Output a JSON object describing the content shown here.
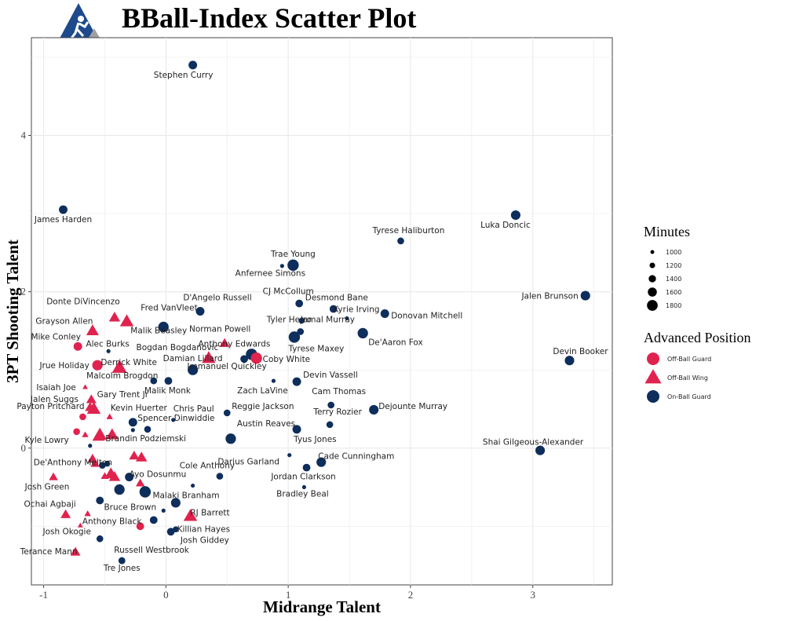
{
  "title": "BBall-Index Scatter Plot",
  "colors": {
    "off_ball_guard": "#e0234e",
    "off_ball_wing": "#e0234e",
    "on_ball_guard": "#0e2e5c",
    "grid": "#ebebeb",
    "logo_bg": "#1e4a8c",
    "logo_tri": "#a0a0a0"
  },
  "chart_data": {
    "type": "scatter",
    "xlabel": "Midrange Talent",
    "ylabel": "3PT Shooting Talent",
    "xlim": [
      -1.1,
      3.65
    ],
    "ylim": [
      -1.75,
      5.25
    ],
    "xticks": [
      -1,
      0,
      1,
      2,
      3
    ],
    "yticks": [
      0,
      2,
      4
    ],
    "grid": true,
    "legend": {
      "minutes_title": "Minutes",
      "minutes_levels": [
        1000,
        1200,
        1400,
        1600,
        1800
      ],
      "position_title": "Advanced Position",
      "positions": [
        "Off-Ball Guard",
        "Off-Ball Wing",
        "On-Ball Guard"
      ],
      "placement": "right"
    },
    "points": [
      {
        "name": "Stephen Curry",
        "x": 0.22,
        "y": 4.9,
        "pos": "On-Ball Guard",
        "minutes": 1500
      },
      {
        "name": "James Harden",
        "x": -0.84,
        "y": 3.05,
        "pos": "On-Ball Guard",
        "minutes": 1500
      },
      {
        "name": "Luka Doncic",
        "x": 2.86,
        "y": 2.98,
        "pos": "On-Ball Guard",
        "minutes": 1600
      },
      {
        "name": "Tyrese Haliburton",
        "x": 1.92,
        "y": 2.65,
        "pos": "On-Ball Guard",
        "minutes": 1300
      },
      {
        "name": "Trae Young",
        "x": 1.04,
        "y": 2.34,
        "pos": "On-Ball Guard",
        "minutes": 1800
      },
      {
        "name": "Anfernee Simons",
        "x": 0.95,
        "y": 2.33,
        "pos": "On-Ball Guard",
        "minutes": 1000
      },
      {
        "name": "Jalen Brunson",
        "x": 3.43,
        "y": 1.95,
        "pos": "On-Ball Guard",
        "minutes": 1600
      },
      {
        "name": "D'Angelo Russell",
        "x": 0.28,
        "y": 1.75,
        "pos": "On-Ball Guard",
        "minutes": 1500
      },
      {
        "name": "CJ McCollum",
        "x": 1.09,
        "y": 1.85,
        "pos": "On-Ball Guard",
        "minutes": 1400
      },
      {
        "name": "Desmond Bane",
        "x": 1.37,
        "y": 1.78,
        "pos": "On-Ball Guard",
        "minutes": 1400
      },
      {
        "name": "Donovan Mitchell",
        "x": 1.79,
        "y": 1.72,
        "pos": "On-Ball Guard",
        "minutes": 1500
      },
      {
        "name": "Tyler Herro",
        "x": 1.11,
        "y": 1.63,
        "pos": "On-Ball Guard",
        "minutes": 1200
      },
      {
        "name": "Kyrie Irving",
        "x": 1.48,
        "y": 1.66,
        "pos": "On-Ball Guard",
        "minutes": 1000
      },
      {
        "name": "De'Aaron Fox",
        "x": 1.61,
        "y": 1.47,
        "pos": "On-Ball Guard",
        "minutes": 1700
      },
      {
        "name": "Jamal Murray",
        "x": 1.1,
        "y": 1.49,
        "pos": "On-Ball Guard",
        "minutes": 1300
      },
      {
        "name": "Tyrese Maxey",
        "x": 1.05,
        "y": 1.42,
        "pos": "On-Ball Guard",
        "minutes": 1800
      },
      {
        "name": "Devin Booker",
        "x": 3.3,
        "y": 1.12,
        "pos": "On-Ball Guard",
        "minutes": 1600
      },
      {
        "name": "Donte DiVincenzo",
        "x": -0.42,
        "y": 1.67,
        "pos": "Off-Ball Wing",
        "minutes": 1500
      },
      {
        "name": "Fred VanVleet",
        "x": -0.32,
        "y": 1.62,
        "pos": "Off-Ball Wing",
        "minutes": 1700
      },
      {
        "name": "Grayson Allen",
        "x": -0.6,
        "y": 1.5,
        "pos": "Off-Ball Wing",
        "minutes": 1600
      },
      {
        "name": "Malik Beasley",
        "x": -0.02,
        "y": 1.55,
        "pos": "On-Ball Guard",
        "minutes": 1700
      },
      {
        "name": "Norman Powell",
        "x": 0.48,
        "y": 1.34,
        "pos": "Off-Ball Wing",
        "minutes": 1400
      },
      {
        "name": "Mike Conley",
        "x": -0.72,
        "y": 1.3,
        "pos": "Off-Ball Guard",
        "minutes": 1500
      },
      {
        "name": "Alec Burks",
        "x": -0.47,
        "y": 1.24,
        "pos": "On-Ball Guard",
        "minutes": 1000
      },
      {
        "name": "Anthony Edwards",
        "x": 0.7,
        "y": 1.2,
        "pos": "On-Ball Guard",
        "minutes": 1800
      },
      {
        "name": "Bogdan Bogdanovic",
        "x": 0.35,
        "y": 1.15,
        "pos": "Off-Ball Wing",
        "minutes": 1700
      },
      {
        "name": "Coby White",
        "x": 0.74,
        "y": 1.15,
        "pos": "Off-Ball Guard",
        "minutes": 1800
      },
      {
        "name": "Immanuel Quickley",
        "x": 0.64,
        "y": 1.14,
        "pos": "On-Ball Guard",
        "minutes": 1400
      },
      {
        "name": "Jrue Holiday",
        "x": -0.56,
        "y": 1.06,
        "pos": "Off-Ball Guard",
        "minutes": 1700
      },
      {
        "name": "Derrick White",
        "x": -0.38,
        "y": 1.03,
        "pos": "Off-Ball Wing",
        "minutes": 1800
      },
      {
        "name": "Damian Lillard",
        "x": 0.22,
        "y": 1.0,
        "pos": "On-Ball Guard",
        "minutes": 1700
      },
      {
        "name": "Malcolm Brogdon",
        "x": -0.1,
        "y": 0.86,
        "pos": "On-Ball Guard",
        "minutes": 1300
      },
      {
        "name": "Malik Monk",
        "x": 0.02,
        "y": 0.86,
        "pos": "On-Ball Guard",
        "minutes": 1400
      },
      {
        "name": "Zach LaVine",
        "x": 0.88,
        "y": 0.86,
        "pos": "On-Ball Guard",
        "minutes": 1000
      },
      {
        "name": "Devin Vassell",
        "x": 1.07,
        "y": 0.85,
        "pos": "On-Ball Guard",
        "minutes": 1500
      },
      {
        "name": "Isaiah Joe",
        "x": -0.66,
        "y": 0.78,
        "pos": "Off-Ball Wing",
        "minutes": 1000
      },
      {
        "name": "Gary Trent Jr",
        "x": -0.61,
        "y": 0.62,
        "pos": "Off-Ball Wing",
        "minutes": 1400
      },
      {
        "name": "Jalen Suggs",
        "x": -0.59,
        "y": 0.5,
        "pos": "Off-Ball Wing",
        "minutes": 1700
      },
      {
        "name": "Kevin Huerter",
        "x": -0.62,
        "y": 0.52,
        "pos": "Off-Ball Wing",
        "minutes": 1400
      },
      {
        "name": "Chris Paul",
        "x": 0.06,
        "y": 0.36,
        "pos": "On-Ball Guard",
        "minutes": 1000
      },
      {
        "name": "Reggie Jackson",
        "x": 0.5,
        "y": 0.45,
        "pos": "On-Ball Guard",
        "minutes": 1300
      },
      {
        "name": "Cam Thomas",
        "x": 1.35,
        "y": 0.55,
        "pos": "On-Ball Guard",
        "minutes": 1300
      },
      {
        "name": "Dejounte Murray",
        "x": 1.7,
        "y": 0.49,
        "pos": "On-Ball Guard",
        "minutes": 1600
      },
      {
        "name": "Terry Rozier",
        "x": 1.34,
        "y": 0.3,
        "pos": "On-Ball Guard",
        "minutes": 1300
      },
      {
        "name": "Payton Pritchard",
        "x": -0.68,
        "y": 0.4,
        "pos": "Off-Ball Guard",
        "minutes": 1300
      },
      {
        "name": "Spencer Dinwiddie",
        "x": -0.27,
        "y": 0.33,
        "pos": "On-Ball Guard",
        "minutes": 1500
      },
      {
        "name": "Austin Reaves",
        "x": 0.53,
        "y": 0.12,
        "pos": "On-Ball Guard",
        "minutes": 1700
      },
      {
        "name": "Tyus Jones",
        "x": 1.07,
        "y": 0.24,
        "pos": "On-Ball Guard",
        "minutes": 1500
      },
      {
        "name": "Shai Gilgeous-Alexander",
        "x": 3.06,
        "y": -0.03,
        "pos": "On-Ball Guard",
        "minutes": 1600
      },
      {
        "name": "Kyle Lowry",
        "x": -0.73,
        "y": 0.21,
        "pos": "Off-Ball Guard",
        "minutes": 1300
      },
      {
        "name": "Brandin Podziemski",
        "x": -0.54,
        "y": 0.17,
        "pos": "Off-Ball Wing",
        "minutes": 1700
      },
      {
        "name": "Darius Garland",
        "x": 1.01,
        "y": -0.09,
        "pos": "On-Ball Guard",
        "minutes": 1000
      },
      {
        "name": "Cade Cunningham",
        "x": 1.27,
        "y": -0.18,
        "pos": "On-Ball Guard",
        "minutes": 1600
      },
      {
        "name": "De'Anthony Melton",
        "x": -0.6,
        "y": -0.14,
        "pos": "Off-Ball Wing",
        "minutes": 1400
      },
      {
        "name": "Cole Anthony",
        "x": 0.44,
        "y": -0.36,
        "pos": "On-Ball Guard",
        "minutes": 1300
      },
      {
        "name": "Ayo Dosunmu",
        "x": -0.3,
        "y": -0.37,
        "pos": "On-Ball Guard",
        "minutes": 1500
      },
      {
        "name": "Jordan Clarkson",
        "x": 1.15,
        "y": -0.25,
        "pos": "On-Ball Guard",
        "minutes": 1400
      },
      {
        "name": "Bradley Beal",
        "x": 1.13,
        "y": -0.5,
        "pos": "On-Ball Guard",
        "minutes": 1000
      },
      {
        "name": "Josh Green",
        "x": -0.92,
        "y": -0.37,
        "pos": "Off-Ball Wing",
        "minutes": 1300
      },
      {
        "name": "Malaki Branham",
        "x": -0.16,
        "y": -0.57,
        "pos": "Off-Ball Wing",
        "minutes": 1000
      },
      {
        "name": "Ochai Agbaji",
        "x": -0.82,
        "y": -0.85,
        "pos": "Off-Ball Wing",
        "minutes": 1400
      },
      {
        "name": "Bruce Brown",
        "x": -0.1,
        "y": -0.92,
        "pos": "On-Ball Guard",
        "minutes": 1400
      },
      {
        "name": "RJ Barrett",
        "x": 0.2,
        "y": -0.87,
        "pos": "Off-Ball Wing",
        "minutes": 1700
      },
      {
        "name": "Anthony Black",
        "x": -0.21,
        "y": -1.0,
        "pos": "Off-Ball Guard",
        "minutes": 1400
      },
      {
        "name": "Killian Hayes",
        "x": 0.04,
        "y": -1.07,
        "pos": "On-Ball Guard",
        "minutes": 1400
      },
      {
        "name": "Josh Giddey",
        "x": 0.08,
        "y": -1.04,
        "pos": "On-Ball Guard",
        "minutes": 1200
      },
      {
        "name": "Josh Okogie",
        "x": -0.54,
        "y": -1.16,
        "pos": "On-Ball Guard",
        "minutes": 1300
      },
      {
        "name": "Russell Westbrook",
        "x": -0.36,
        "y": -1.44,
        "pos": "On-Ball Guard",
        "minutes": 1300
      },
      {
        "name": "Terance Mann",
        "x": -0.74,
        "y": -1.33,
        "pos": "Off-Ball Wing",
        "minutes": 1400
      },
      {
        "name": "Tre Jones",
        "x": -0.36,
        "y": -1.44,
        "pos": "On-Ball Guard",
        "minutes": 1300
      },
      {
        "name": "",
        "x": -0.54,
        "y": -0.67,
        "pos": "On-Ball Guard",
        "minutes": 1400
      },
      {
        "name": "",
        "x": -0.38,
        "y": -0.53,
        "pos": "On-Ball Guard",
        "minutes": 1700
      },
      {
        "name": "",
        "x": -0.17,
        "y": -0.56,
        "pos": "On-Ball Guard",
        "minutes": 1800
      },
      {
        "name": "",
        "x": 0.08,
        "y": -0.7,
        "pos": "On-Ball Guard",
        "minutes": 1600
      },
      {
        "name": "",
        "x": -0.02,
        "y": -0.8,
        "pos": "On-Ball Guard",
        "minutes": 1000
      },
      {
        "name": "",
        "x": 0.22,
        "y": -0.48,
        "pos": "On-Ball Guard",
        "minutes": 1000
      },
      {
        "name": "",
        "x": -0.48,
        "y": -0.2,
        "pos": "On-Ball Guard",
        "minutes": 1200
      },
      {
        "name": "",
        "x": -0.52,
        "y": -0.22,
        "pos": "On-Ball Guard",
        "minutes": 1300
      },
      {
        "name": "",
        "x": -0.62,
        "y": 0.03,
        "pos": "On-Ball Guard",
        "minutes": 1000
      },
      {
        "name": "",
        "x": -0.27,
        "y": 0.23,
        "pos": "On-Ball Guard",
        "minutes": 1000
      },
      {
        "name": "",
        "x": -0.15,
        "y": 0.24,
        "pos": "On-Ball Guard",
        "minutes": 1300
      },
      {
        "name": "",
        "x": -0.45,
        "y": -0.33,
        "pos": "Off-Ball Wing",
        "minutes": 1600
      },
      {
        "name": "",
        "x": -0.42,
        "y": -0.37,
        "pos": "Off-Ball Wing",
        "minutes": 1500
      },
      {
        "name": "",
        "x": -0.5,
        "y": -0.36,
        "pos": "Off-Ball Wing",
        "minutes": 1200
      },
      {
        "name": "",
        "x": -0.58,
        "y": -0.2,
        "pos": "Off-Ball Wing",
        "minutes": 1300
      },
      {
        "name": "",
        "x": -0.26,
        "y": -0.1,
        "pos": "Off-Ball Wing",
        "minutes": 1400
      },
      {
        "name": "",
        "x": -0.2,
        "y": -0.12,
        "pos": "Off-Ball Wing",
        "minutes": 1500
      },
      {
        "name": "",
        "x": -0.21,
        "y": -0.45,
        "pos": "Off-Ball Wing",
        "minutes": 1300
      },
      {
        "name": "",
        "x": -0.55,
        "y": 0.15,
        "pos": "Off-Ball Wing",
        "minutes": 1600
      },
      {
        "name": "",
        "x": -0.44,
        "y": 0.17,
        "pos": "Off-Ball Wing",
        "minutes": 1600
      },
      {
        "name": "",
        "x": -0.66,
        "y": 0.17,
        "pos": "Off-Ball Wing",
        "minutes": 1100
      },
      {
        "name": "",
        "x": -0.64,
        "y": -0.84,
        "pos": "Off-Ball Wing",
        "minutes": 1100
      },
      {
        "name": "",
        "x": -0.7,
        "y": -0.99,
        "pos": "Off-Ball Wing",
        "minutes": 1000
      },
      {
        "name": "",
        "x": -0.46,
        "y": 0.4,
        "pos": "Off-Ball Wing",
        "minutes": 1100
      }
    ]
  }
}
